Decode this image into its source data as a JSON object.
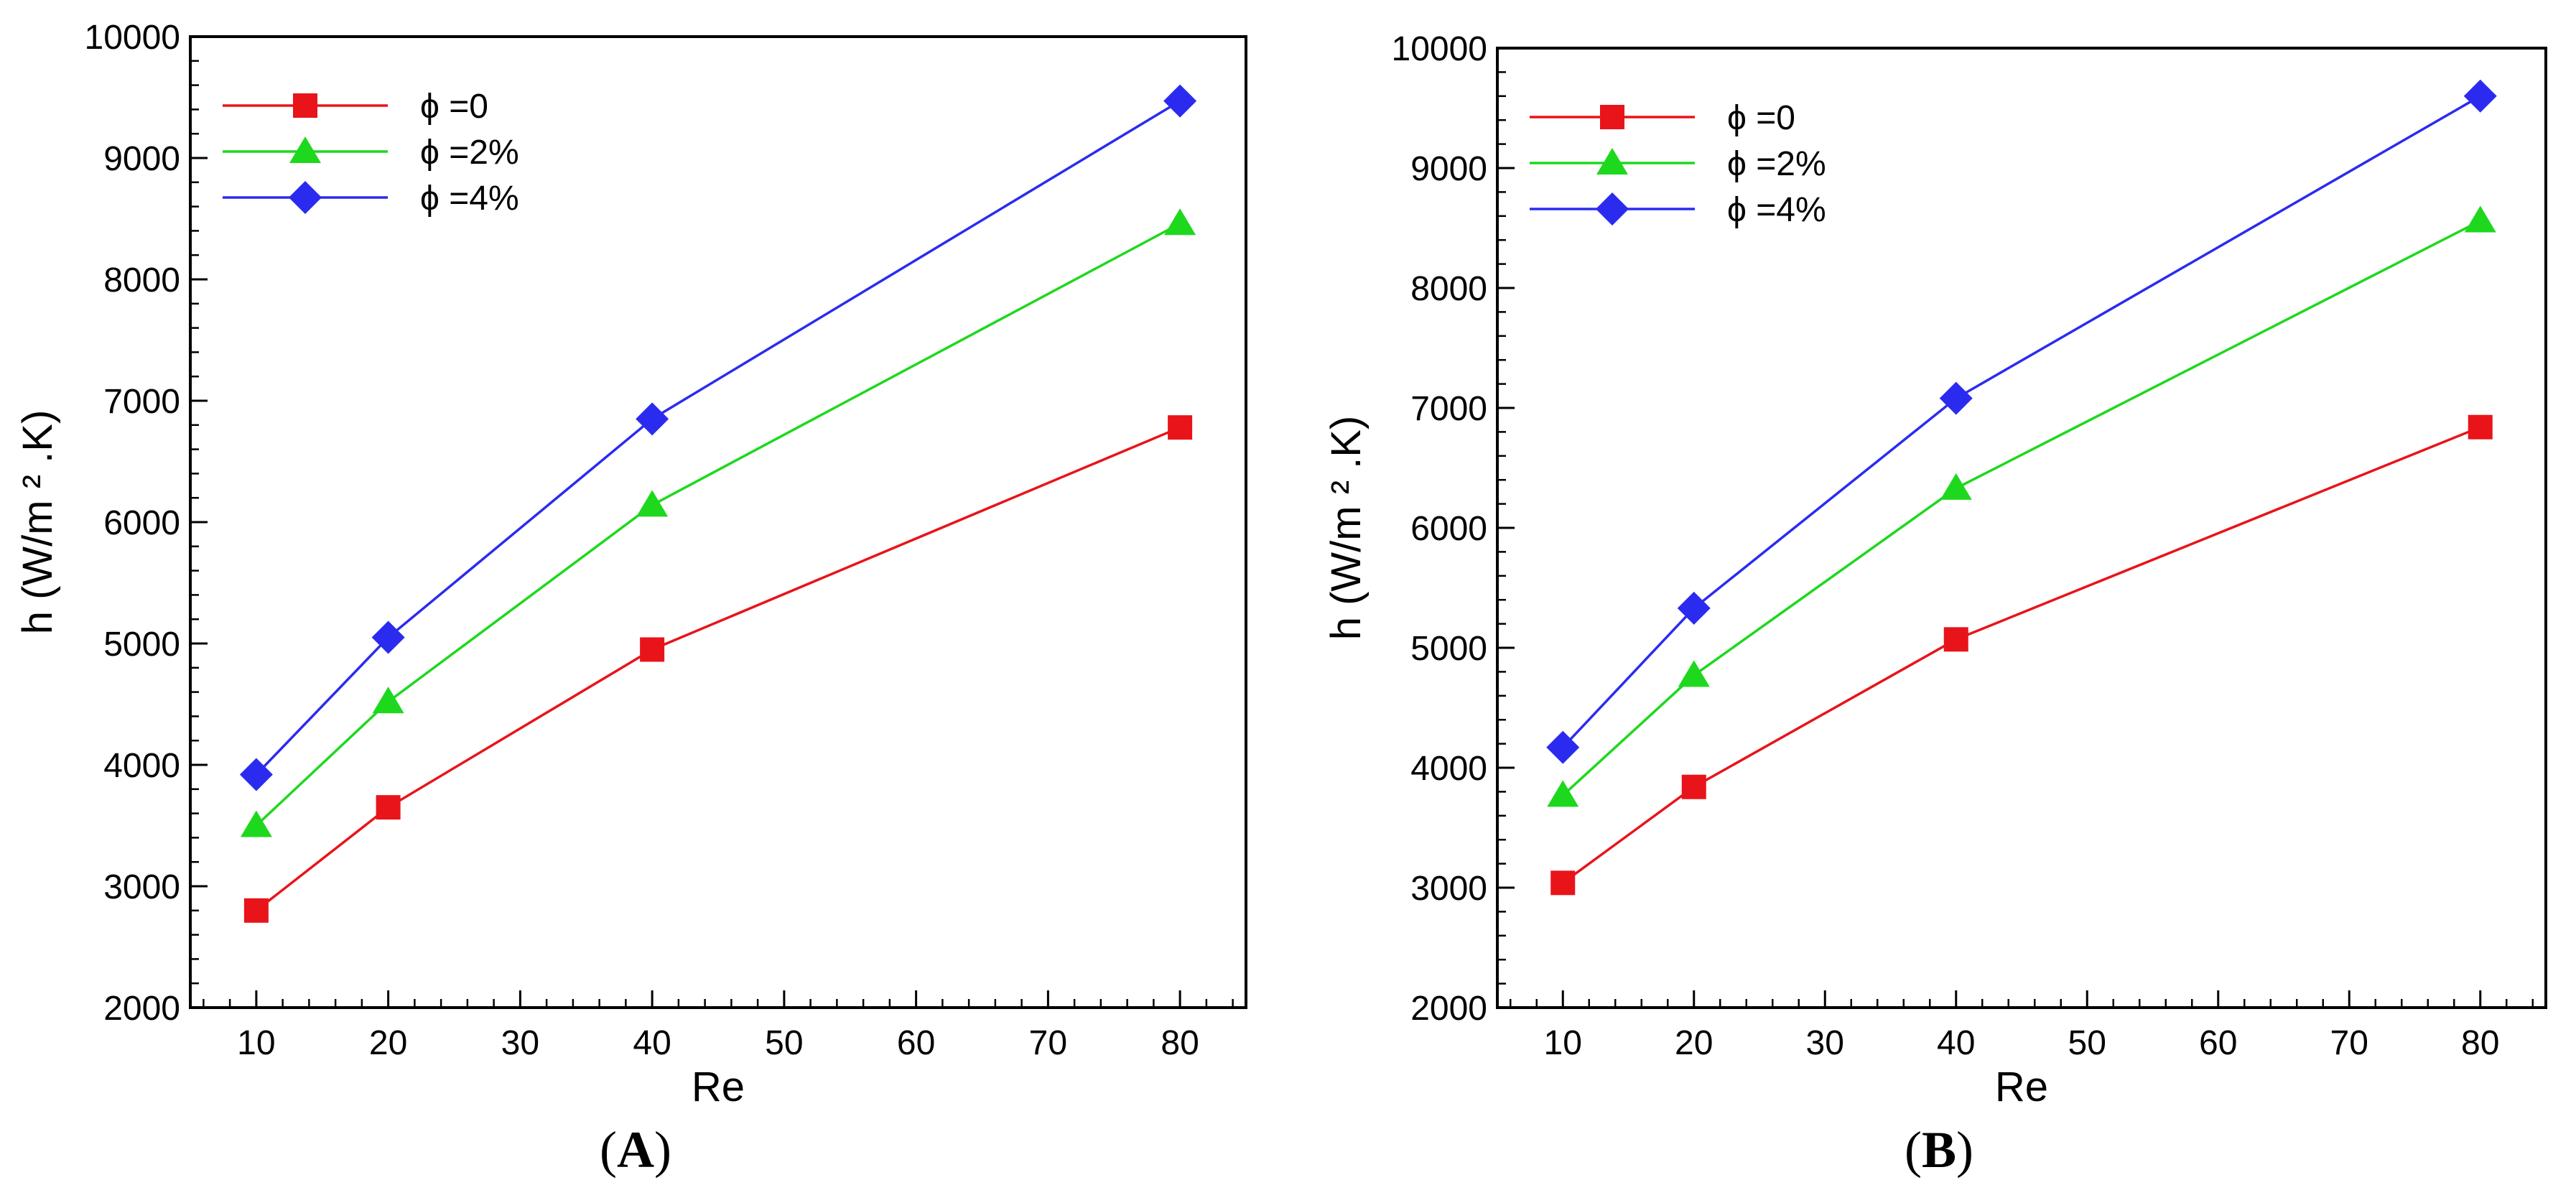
{
  "chart_data": [
    {
      "panel": "(A)",
      "panel_letter": "A",
      "type": "line",
      "xlabel": "Re",
      "ylabel": "h (W/m ² .K)",
      "xlim": [
        5,
        85
      ],
      "ylim": [
        2000,
        10000
      ],
      "xticks": [
        10,
        20,
        30,
        40,
        50,
        60,
        70,
        80
      ],
      "yticks": [
        2000,
        3000,
        4000,
        5000,
        6000,
        7000,
        8000,
        9000,
        10000
      ],
      "legend_position": "top-left",
      "series": [
        {
          "name": "ϕ =0",
          "color": "#e8141a",
          "marker": "square",
          "x": [
            10,
            20,
            40,
            80
          ],
          "values": [
            2800,
            3650,
            4950,
            6780
          ]
        },
        {
          "name": "ϕ =2%",
          "color": "#1ed81e",
          "marker": "triangle",
          "x": [
            10,
            20,
            40,
            80
          ],
          "values": [
            3500,
            4520,
            6140,
            8460
          ]
        },
        {
          "name": "ϕ =4%",
          "color": "#2b2bf0",
          "marker": "diamond",
          "x": [
            10,
            20,
            40,
            80
          ],
          "values": [
            3920,
            5050,
            6850,
            9470
          ]
        }
      ]
    },
    {
      "panel": "(B)",
      "panel_letter": "B",
      "type": "line",
      "xlabel": "Re",
      "ylabel": "h (W/m ² .K)",
      "xlim": [
        5,
        85
      ],
      "ylim": [
        2000,
        10000
      ],
      "xticks": [
        10,
        20,
        30,
        40,
        50,
        60,
        70,
        80
      ],
      "yticks": [
        2000,
        3000,
        4000,
        5000,
        6000,
        7000,
        8000,
        9000,
        10000
      ],
      "legend_position": "top-left",
      "series": [
        {
          "name": "ϕ =0",
          "color": "#e8141a",
          "marker": "square",
          "x": [
            10,
            20,
            40,
            80
          ],
          "values": [
            3040,
            3840,
            5070,
            6840
          ]
        },
        {
          "name": "ϕ =2%",
          "color": "#1ed81e",
          "marker": "triangle",
          "x": [
            10,
            20,
            40,
            80
          ],
          "values": [
            3770,
            4770,
            6330,
            8560
          ]
        },
        {
          "name": "ϕ =4%",
          "color": "#2b2bf0",
          "marker": "diamond",
          "x": [
            10,
            20,
            40,
            80
          ],
          "values": [
            4170,
            5330,
            7080,
            9600
          ]
        }
      ]
    }
  ]
}
